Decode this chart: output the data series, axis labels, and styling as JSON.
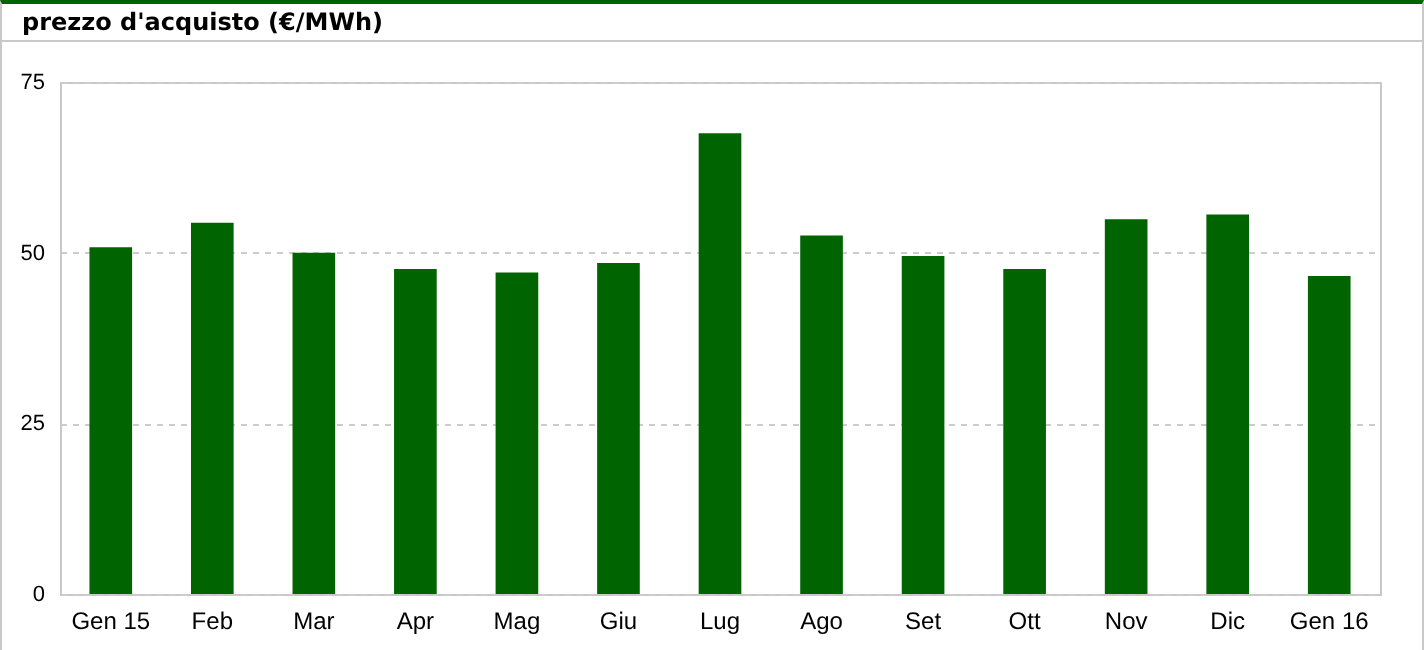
{
  "chart_data": {
    "type": "bar",
    "title": "prezzo d'acquisto  (€/MWh)",
    "categories": [
      "Gen 15",
      "Feb",
      "Mar",
      "Apr",
      "Mag",
      "Giu",
      "Lug",
      "Ago",
      "Set",
      "Ott",
      "Nov",
      "Dic",
      "Gen 16"
    ],
    "values": [
      50.8,
      54.4,
      50.0,
      47.6,
      47.1,
      48.5,
      67.5,
      52.5,
      49.5,
      47.6,
      54.9,
      55.6,
      46.6
    ],
    "color": "#006400",
    "ylim": [
      0,
      75
    ],
    "yticks": [
      0,
      25,
      50,
      75
    ],
    "grid": "y"
  }
}
